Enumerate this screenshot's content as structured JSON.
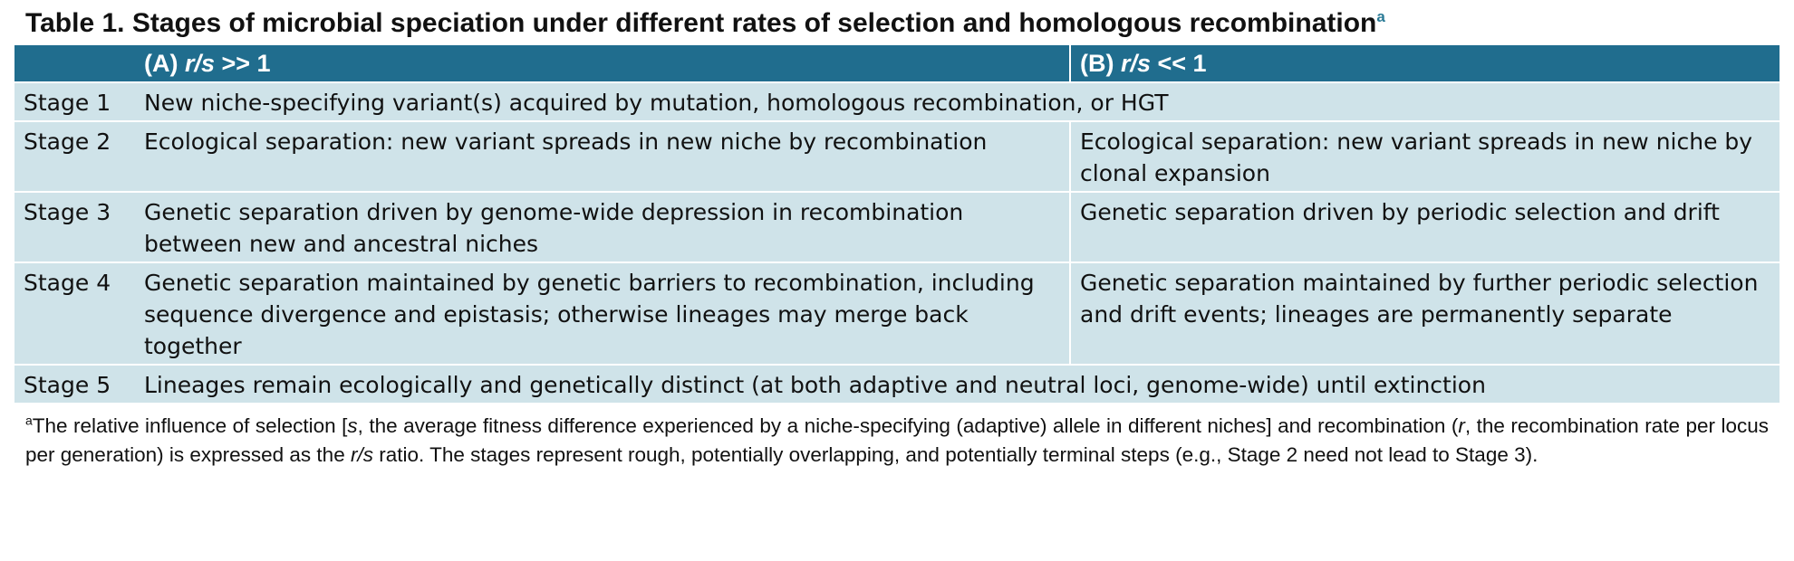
{
  "title": {
    "text": "Table 1. Stages of microbial speciation under different rates of selection and homologous recombination",
    "footnote_marker": "a"
  },
  "columns": {
    "a_prefix": "(A) ",
    "a_ratio": "r/s",
    "a_suffix": " >> 1",
    "b_prefix": "(B) ",
    "b_ratio": "r/s",
    "b_suffix": " << 1"
  },
  "rows": [
    {
      "stage": "Stage 1",
      "a": "New niche-specifying variant(s) acquired by mutation, homologous recombination, or HGT",
      "b": ""
    },
    {
      "stage": "Stage 2",
      "a": "Ecological separation: new variant spreads in new niche by recombination",
      "b": "Ecological separation: new variant spreads in new niche by clonal expansion"
    },
    {
      "stage": "Stage 3",
      "a": "Genetic separation driven by genome-wide depression in recombination between new and ancestral niches",
      "b": "Genetic separation driven by periodic selection and drift"
    },
    {
      "stage": "Stage 4",
      "a": "Genetic separation maintained by genetic barriers to recombination, including sequence divergence and epistasis; otherwise lineages may merge back together",
      "b": "Genetic separation maintained by further periodic selection and drift events; lineages are permanently separate"
    },
    {
      "stage": "Stage 5",
      "a": "Lineages remain ecologically and genetically distinct (at both adaptive and neutral loci, genome-wide) until extinction",
      "b": ""
    }
  ],
  "footnote": {
    "marker": "a",
    "text_1": "The relative influence of selection [",
    "s_var": "s",
    "text_2": ", the average fitness difference experienced by a niche-specifying (adaptive) allele in different niches] and recombination (",
    "r_var": "r",
    "text_3": ", the recombination rate per locus per generation) is expressed as the ",
    "ratio_var": "r/s",
    "text_4": " ratio. The stages represent rough, potentially overlapping, and potentially terminal steps (e.g., Stage 2 need not lead to Stage 3)."
  },
  "colors": {
    "header_bg": "#206d8e",
    "row_bg": "#cfe3e9",
    "marker": "#2a7a96"
  }
}
